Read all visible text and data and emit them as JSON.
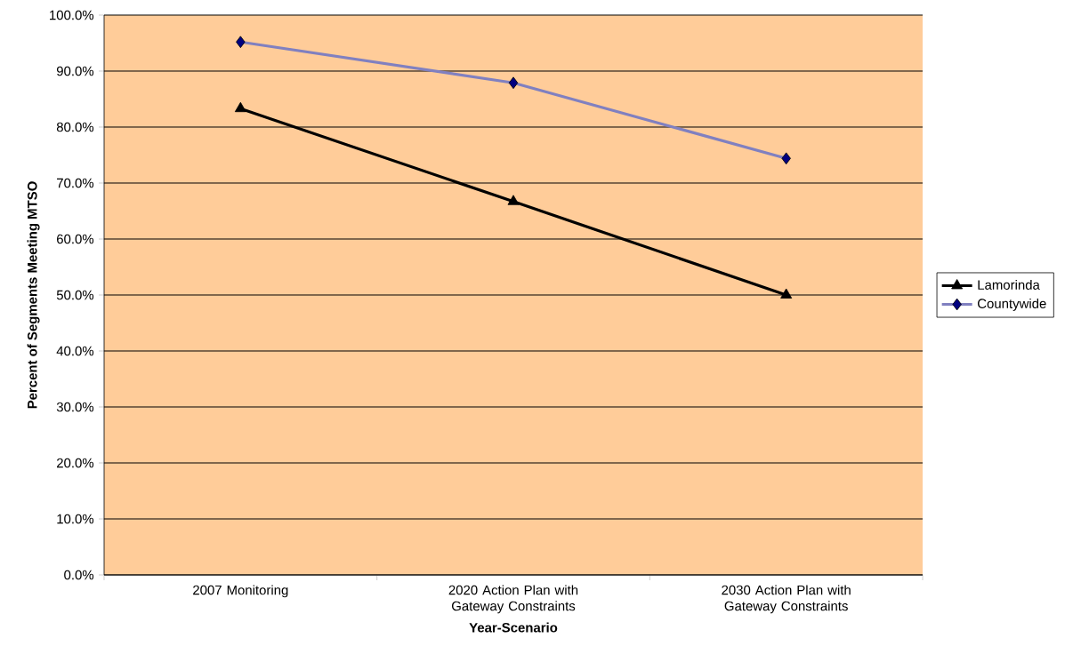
{
  "chart_data": {
    "type": "line",
    "xlabel": "Year-Scenario",
    "ylabel": "Percent of Segments Meeting MTSO",
    "categories": [
      "2007 Monitoring",
      "2020 Action Plan with Gateway Constraints",
      "2030 Action Plan with Gateway Constraints"
    ],
    "series": [
      {
        "name": "Lamorinda",
        "color": "#000000",
        "marker": "triangle",
        "values": [
          83.3,
          66.7,
          50.0
        ]
      },
      {
        "name": "Countywide",
        "color": "#8080c0",
        "marker": "diamond",
        "values": [
          95.2,
          87.9,
          74.4
        ]
      }
    ],
    "ylim": [
      0,
      100
    ],
    "yticks": [
      {
        "value": 0,
        "label": "0.0%"
      },
      {
        "value": 10,
        "label": "10.0%"
      },
      {
        "value": 20,
        "label": "20.0%"
      },
      {
        "value": 30,
        "label": "30.0%"
      },
      {
        "value": 40,
        "label": "40.0%"
      },
      {
        "value": 50,
        "label": "50.0%"
      },
      {
        "value": 60,
        "label": "60.0%"
      },
      {
        "value": 70,
        "label": "70.0%"
      },
      {
        "value": 80,
        "label": "80.0%"
      },
      {
        "value": 90,
        "label": "90.0%"
      },
      {
        "value": 100,
        "label": "100.0%"
      }
    ],
    "grid": "y",
    "legend": "right",
    "line_style": "solid"
  }
}
